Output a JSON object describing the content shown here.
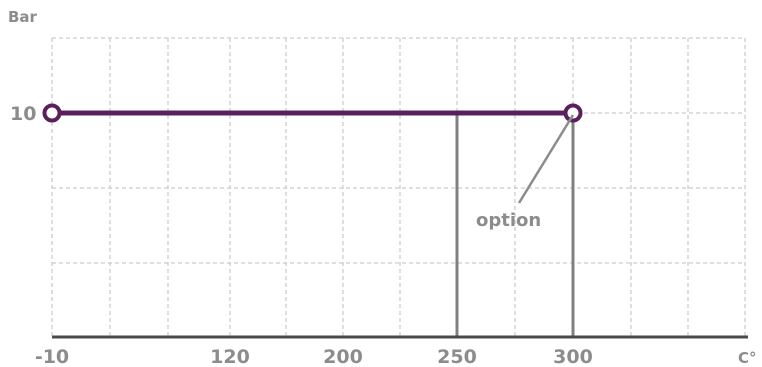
{
  "chart_data": {
    "type": "line",
    "ylabel": "Bar",
    "xlabel": "C°",
    "x_ticks": [
      "-10",
      "120",
      "200",
      "250",
      "300"
    ],
    "y_ticks": [
      "10"
    ],
    "grid": true,
    "series": [
      {
        "x": [
          -10,
          300
        ],
        "y": [
          10,
          10
        ],
        "color": "#5b1f5e"
      }
    ],
    "vertical_markers": [
      250,
      300
    ],
    "annotation": {
      "text": "option",
      "x": 300,
      "y": 10
    },
    "colors": {
      "series": "#5b1f5e",
      "grid": "#cccccc",
      "axis": "#4a4a4a",
      "marker_line": "#808080",
      "text": "#8c8c8c"
    }
  }
}
